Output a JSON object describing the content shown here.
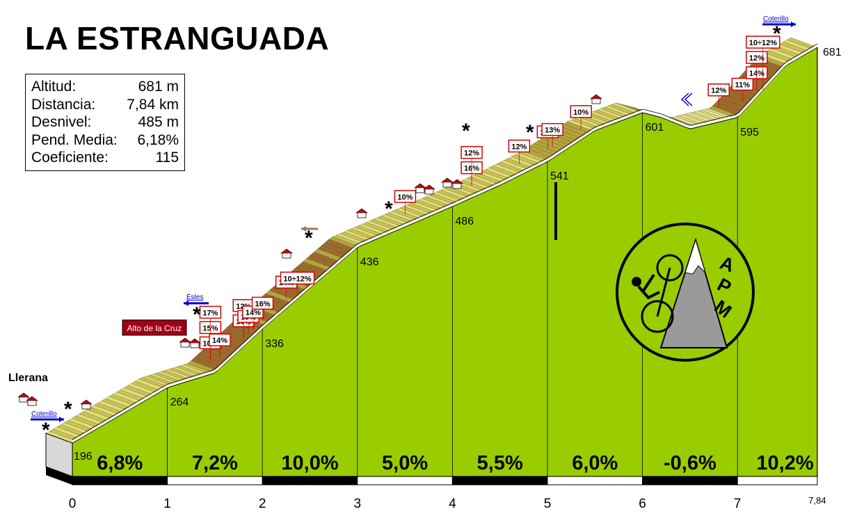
{
  "title": "LA ESTRANGUADA",
  "stats": [
    {
      "label": "Altitud:",
      "value": "681 m"
    },
    {
      "label": "Distancia:",
      "value": "7,84 km"
    },
    {
      "label": "Desnivel:",
      "value": "485 m"
    },
    {
      "label": "Pend. Media:",
      "value": "6,18%"
    },
    {
      "label": "Coeficiente:",
      "value": "115"
    }
  ],
  "colors": {
    "fill": "#9acd00",
    "road_light": "#d7d36a",
    "road_dark": "#8b5a2b",
    "label_border": "#d40000",
    "arrow": "#0000cc",
    "marker_box": "#a00018"
  },
  "chart_data": {
    "type": "area",
    "title": "LA ESTRANGUADA",
    "xlabel": "",
    "ylabel": "",
    "x_ticks": [
      "0",
      "1",
      "2",
      "3",
      "4",
      "5",
      "6",
      "7"
    ],
    "x_end_label": "7,84",
    "xlim": [
      0,
      7.84
    ],
    "profile": [
      {
        "x": 0,
        "y": 196
      },
      {
        "x": 1,
        "y": 264
      },
      {
        "x": 1.5,
        "y": 282
      },
      {
        "x": 2,
        "y": 336
      },
      {
        "x": 2.5,
        "y": 386
      },
      {
        "x": 3,
        "y": 436
      },
      {
        "x": 3.5,
        "y": 461
      },
      {
        "x": 4,
        "y": 486
      },
      {
        "x": 4.5,
        "y": 512
      },
      {
        "x": 5,
        "y": 541
      },
      {
        "x": 5.5,
        "y": 579
      },
      {
        "x": 6,
        "y": 601
      },
      {
        "x": 6.2,
        "y": 595
      },
      {
        "x": 6.5,
        "y": 581
      },
      {
        "x": 7,
        "y": 595
      },
      {
        "x": 7.5,
        "y": 658
      },
      {
        "x": 7.84,
        "y": 681
      }
    ],
    "elevation_labels": [
      {
        "x": 0,
        "text": "196"
      },
      {
        "x": 1,
        "text": "264"
      },
      {
        "x": 2,
        "text": "336"
      },
      {
        "x": 3,
        "text": "436"
      },
      {
        "x": 4,
        "text": "486"
      },
      {
        "x": 5,
        "text": "541"
      },
      {
        "x": 6,
        "text": "601"
      },
      {
        "x": 7,
        "text": "595"
      },
      {
        "x": 7.84,
        "text": "681"
      }
    ],
    "km_gradients": [
      "6,8%",
      "7,2%",
      "10,0%",
      "5,0%",
      "5,5%",
      "6,0%",
      "-0,6%",
      "10,2%"
    ],
    "slope_labels": [
      {
        "x": 1.35,
        "text": "10%"
      },
      {
        "x": 1.35,
        "text": "15%"
      },
      {
        "x": 1.35,
        "text": "17%"
      },
      {
        "x": 1.45,
        "text": "14%"
      },
      {
        "x": 1.7,
        "text": "16%"
      },
      {
        "x": 1.7,
        "text": "12%"
      },
      {
        "x": 1.75,
        "text": "19%"
      },
      {
        "x": 1.8,
        "text": "14%"
      },
      {
        "x": 1.9,
        "text": "16%"
      },
      {
        "x": 2.15,
        "text": "14%"
      },
      {
        "x": 2.2,
        "text": "10÷12%"
      },
      {
        "x": 3.4,
        "text": "10%"
      },
      {
        "x": 4.1,
        "text": "16%"
      },
      {
        "x": 4.1,
        "text": "12%"
      },
      {
        "x": 4.6,
        "text": "12%"
      },
      {
        "x": 4.9,
        "text": "16%"
      },
      {
        "x": 4.95,
        "text": "13%"
      },
      {
        "x": 5.25,
        "text": "10%"
      },
      {
        "x": 6.7,
        "text": "12%"
      },
      {
        "x": 6.95,
        "text": "11%"
      },
      {
        "x": 7.1,
        "text": "14%"
      },
      {
        "x": 7.1,
        "text": "12%"
      },
      {
        "x": 7.1,
        "text": "10÷12%"
      }
    ],
    "place_labels": [
      "Llerana",
      "Alto de la Cruz"
    ],
    "road_labels": [
      "Coterillo",
      "Esles",
      "Coterillo"
    ],
    "logo_text": [
      "A",
      "P",
      "M"
    ]
  }
}
